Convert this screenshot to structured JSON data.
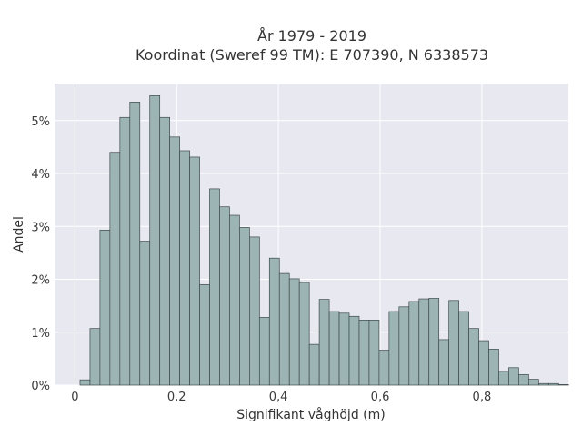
{
  "chart_data": {
    "type": "bar",
    "title": "År 1979 - 2019",
    "subtitle": "Koordinat (Sweref 99 TM): E 707390, N 6338573",
    "xlabel": "Signifikant våghöjd (m)",
    "ylabel": "Andel",
    "xlim": [
      -0.04,
      0.97
    ],
    "ylim": [
      0,
      0.057
    ],
    "bin_width": 0.0196,
    "x_start": 0.01,
    "xticks": [
      0,
      0.2,
      0.4,
      0.6,
      0.8
    ],
    "xtick_labels": [
      "0",
      "0,2",
      "0,4",
      "0,6",
      "0,8"
    ],
    "yticks": [
      0,
      0.01,
      0.02,
      0.03,
      0.04,
      0.05
    ],
    "ytick_labels": [
      "0%",
      "1%",
      "2%",
      "3%",
      "4%",
      "5%"
    ],
    "grid": true,
    "values": [
      0.001,
      0.0107,
      0.0293,
      0.044,
      0.0506,
      0.0535,
      0.0272,
      0.0547,
      0.0506,
      0.0469,
      0.0443,
      0.0431,
      0.019,
      0.0371,
      0.0337,
      0.0321,
      0.0298,
      0.028,
      0.0128,
      0.024,
      0.0211,
      0.0201,
      0.0194,
      0.0077,
      0.0162,
      0.0139,
      0.0136,
      0.013,
      0.0123,
      0.0123,
      0.0066,
      0.0139,
      0.0148,
      0.0158,
      0.0163,
      0.0164,
      0.0086,
      0.016,
      0.0139,
      0.0107,
      0.0084,
      0.0068,
      0.0026,
      0.0033,
      0.002,
      0.0011,
      0.0003,
      0.0003,
      0.0001
    ],
    "colors": {
      "bar_fill": "#9cb4b3",
      "bar_stroke": "#3d4a4a",
      "plot_bg": "#e8e8f0",
      "grid": "#ffffff"
    }
  }
}
